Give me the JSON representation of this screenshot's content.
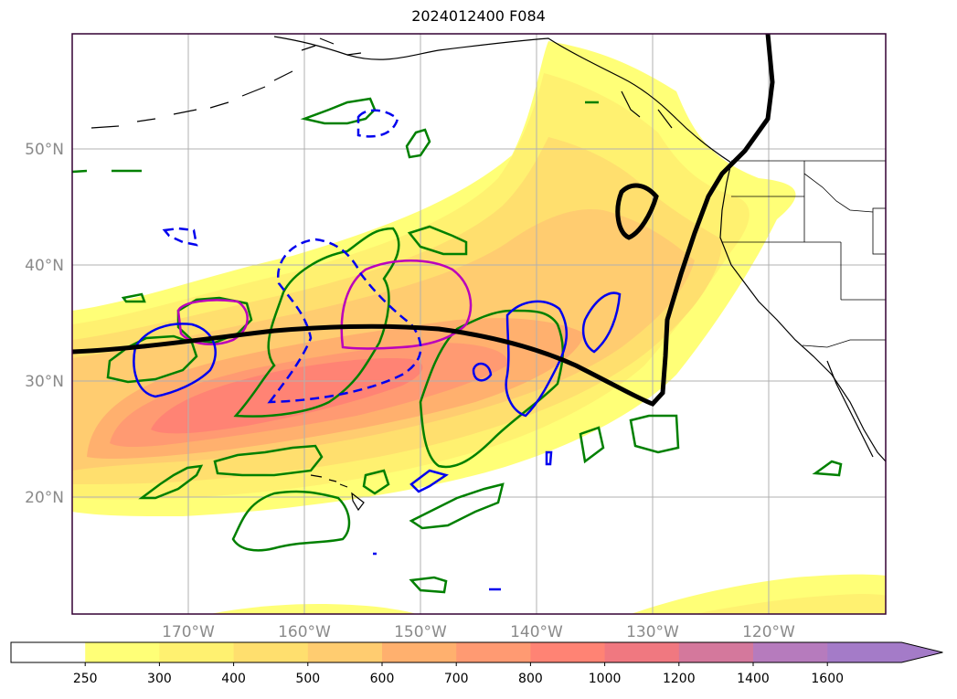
{
  "title": "2024012400 F084",
  "lat_labels": [
    "50°N",
    "40°N",
    "30°N",
    "20°N"
  ],
  "lon_labels": [
    "170°W",
    "160°W",
    "150°W",
    "140°W",
    "130°W",
    "120°W"
  ],
  "colorbar": {
    "labels": [
      "250",
      "300",
      "400",
      "500",
      "600",
      "700",
      "800",
      "1000",
      "1200",
      "1400",
      "1600"
    ],
    "colors": [
      "#ffffff",
      "#ffff77",
      "#fff170",
      "#ffdf6e",
      "#ffcc70",
      "#ffb06e",
      "#ff9a72",
      "#ff8374",
      "#f07880",
      "#d4789c",
      "#b67bbd",
      "#a47bc8"
    ]
  },
  "colors": {
    "green_contour": "#008000",
    "blue_contour": "#0000ee",
    "magenta_contour": "#bb00bb",
    "jet_line": "#000000",
    "grid": "#b0b0b0",
    "frame": "#330033"
  }
}
